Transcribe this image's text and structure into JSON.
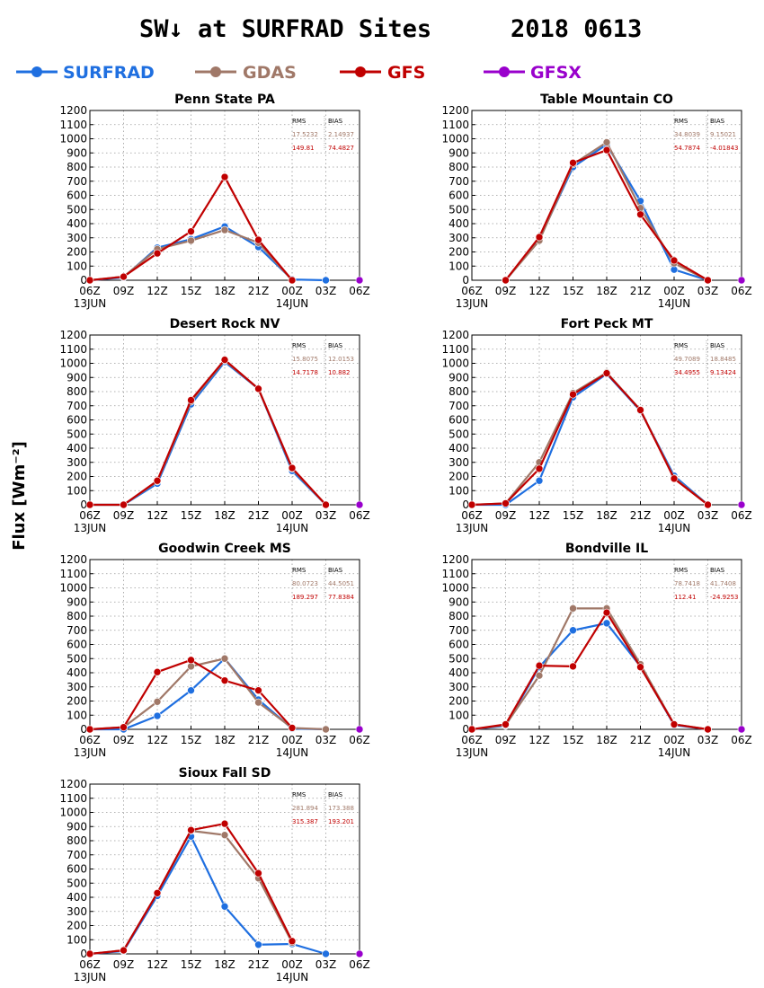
{
  "figure": {
    "title": "SW↓ at SURFRAD Sites",
    "date": "2018 0613",
    "ylabel": "Flux [Wm⁻²]"
  },
  "series_meta": [
    {
      "name": "SURFRAD",
      "color": "#1f6fe0"
    },
    {
      "name": "GDAS",
      "color": "#a07868"
    },
    {
      "name": "GFS",
      "color": "#c00000"
    },
    {
      "name": "GFSX",
      "color": "#9900cc"
    }
  ],
  "stats_headers": [
    "RMS",
    "BIAS"
  ],
  "chart_data": [
    {
      "type": "line",
      "title": "Penn State PA",
      "x": [
        "06Z",
        "09Z",
        "12Z",
        "15Z",
        "18Z",
        "21Z",
        "00Z",
        "03Z",
        "06Z"
      ],
      "x_sublabels": {
        "0": "13JUN",
        "6": "14JUN"
      },
      "ylim": [
        0,
        1200
      ],
      "yticks": [
        0,
        100,
        200,
        300,
        400,
        500,
        600,
        700,
        800,
        900,
        1000,
        1100,
        1200
      ],
      "grid": true,
      "series": [
        {
          "name": "SURFRAD",
          "values": [
            0,
            20,
            230,
            290,
            380,
            235,
            5,
            0,
            null
          ]
        },
        {
          "name": "GDAS",
          "values": [
            0,
            25,
            220,
            280,
            355,
            265,
            0,
            null,
            null
          ]
        },
        {
          "name": "GFS",
          "values": [
            0,
            25,
            190,
            345,
            730,
            285,
            0,
            null,
            null
          ]
        },
        {
          "name": "GFSX",
          "values": [
            null,
            null,
            null,
            null,
            null,
            null,
            null,
            null,
            0
          ]
        }
      ],
      "stats": [
        {
          "model": "GDAS",
          "rms": "17.5232",
          "bias": "2.14937"
        },
        {
          "model": "GFS",
          "rms": "149.81",
          "bias": "74.4827"
        }
      ]
    },
    {
      "type": "line",
      "title": "Table Mountain CO",
      "x": [
        "06Z",
        "09Z",
        "12Z",
        "15Z",
        "18Z",
        "21Z",
        "00Z",
        "03Z",
        "06Z"
      ],
      "x_sublabels": {
        "0": "13JUN",
        "6": "14JUN"
      },
      "ylim": [
        0,
        1200
      ],
      "yticks": [
        0,
        100,
        200,
        300,
        400,
        500,
        600,
        700,
        800,
        900,
        1000,
        1100,
        1200
      ],
      "grid": true,
      "series": [
        {
          "name": "SURFRAD",
          "values": [
            null,
            0,
            290,
            800,
            960,
            560,
            75,
            0,
            null
          ]
        },
        {
          "name": "GDAS",
          "values": [
            null,
            0,
            280,
            820,
            975,
            510,
            120,
            0,
            null
          ]
        },
        {
          "name": "GFS",
          "values": [
            null,
            0,
            305,
            830,
            920,
            465,
            140,
            0,
            null
          ]
        },
        {
          "name": "GFSX",
          "values": [
            null,
            null,
            null,
            null,
            null,
            null,
            null,
            null,
            0
          ]
        }
      ],
      "stats": [
        {
          "model": "GDAS",
          "rms": "34.8039",
          "bias": "9.15021"
        },
        {
          "model": "GFS",
          "rms": "54.7874",
          "bias": "-4.01843"
        }
      ]
    },
    {
      "type": "line",
      "title": "Desert Rock NV",
      "x": [
        "06Z",
        "09Z",
        "12Z",
        "15Z",
        "18Z",
        "21Z",
        "00Z",
        "03Z",
        "06Z"
      ],
      "x_sublabels": {
        "0": "13JUN",
        "6": "14JUN"
      },
      "ylim": [
        0,
        1200
      ],
      "yticks": [
        0,
        100,
        200,
        300,
        400,
        500,
        600,
        700,
        800,
        900,
        1000,
        1100,
        1200
      ],
      "grid": true,
      "series": [
        {
          "name": "SURFRAD",
          "values": [
            0,
            0,
            150,
            710,
            1010,
            820,
            240,
            0,
            null
          ]
        },
        {
          "name": "GDAS",
          "values": [
            0,
            0,
            165,
            730,
            1020,
            820,
            255,
            0,
            null
          ]
        },
        {
          "name": "GFS",
          "values": [
            0,
            0,
            170,
            740,
            1025,
            820,
            260,
            0,
            null
          ]
        },
        {
          "name": "GFSX",
          "values": [
            null,
            null,
            null,
            null,
            null,
            null,
            null,
            null,
            0
          ]
        }
      ],
      "stats": [
        {
          "model": "GDAS",
          "rms": "15.8075",
          "bias": "12.0153"
        },
        {
          "model": "GFS",
          "rms": "14.7178",
          "bias": "10.882"
        }
      ]
    },
    {
      "type": "line",
      "title": "Fort Peck MT",
      "x": [
        "06Z",
        "09Z",
        "12Z",
        "15Z",
        "18Z",
        "21Z",
        "00Z",
        "03Z",
        "06Z"
      ],
      "x_sublabels": {
        "0": "13JUN",
        "6": "14JUN"
      },
      "ylim": [
        0,
        1200
      ],
      "yticks": [
        0,
        100,
        200,
        300,
        400,
        500,
        600,
        700,
        800,
        900,
        1000,
        1100,
        1200
      ],
      "grid": true,
      "series": [
        {
          "name": "SURFRAD",
          "values": [
            0,
            0,
            170,
            760,
            925,
            665,
            205,
            0,
            null
          ]
        },
        {
          "name": "GDAS",
          "values": [
            0,
            10,
            300,
            790,
            935,
            670,
            190,
            0,
            null
          ]
        },
        {
          "name": "GFS",
          "values": [
            0,
            10,
            255,
            780,
            930,
            670,
            185,
            0,
            null
          ]
        },
        {
          "name": "GFSX",
          "values": [
            null,
            null,
            null,
            null,
            null,
            null,
            null,
            null,
            0
          ]
        }
      ],
      "stats": [
        {
          "model": "GDAS",
          "rms": "49.7089",
          "bias": "18.8485"
        },
        {
          "model": "GFS",
          "rms": "34.4955",
          "bias": "9.13424"
        }
      ]
    },
    {
      "type": "line",
      "title": "Goodwin Creek MS",
      "x": [
        "06Z",
        "09Z",
        "12Z",
        "15Z",
        "18Z",
        "21Z",
        "00Z",
        "03Z",
        "06Z"
      ],
      "x_sublabels": {
        "0": "13JUN",
        "6": "14JUN"
      },
      "ylim": [
        0,
        1200
      ],
      "yticks": [
        0,
        100,
        200,
        300,
        400,
        500,
        600,
        700,
        800,
        900,
        1000,
        1100,
        1200
      ],
      "grid": true,
      "series": [
        {
          "name": "SURFRAD",
          "values": [
            0,
            0,
            95,
            275,
            500,
            210,
            5,
            0,
            null
          ]
        },
        {
          "name": "GDAS",
          "values": [
            0,
            15,
            195,
            445,
            500,
            190,
            10,
            0,
            null
          ]
        },
        {
          "name": "GFS",
          "values": [
            0,
            15,
            405,
            490,
            345,
            275,
            10,
            null,
            null
          ]
        },
        {
          "name": "GFSX",
          "values": [
            null,
            null,
            null,
            null,
            null,
            null,
            null,
            null,
            0
          ]
        }
      ],
      "stats": [
        {
          "model": "GDAS",
          "rms": "80.0723",
          "bias": "44.5051"
        },
        {
          "model": "GFS",
          "rms": "189.297",
          "bias": "77.8384"
        }
      ]
    },
    {
      "type": "line",
      "title": "Bondville IL",
      "x": [
        "06Z",
        "09Z",
        "12Z",
        "15Z",
        "18Z",
        "21Z",
        "00Z",
        "03Z",
        "06Z"
      ],
      "x_sublabels": {
        "0": "13JUN",
        "6": "14JUN"
      },
      "ylim": [
        0,
        1200
      ],
      "yticks": [
        0,
        100,
        200,
        300,
        400,
        500,
        600,
        700,
        800,
        900,
        1000,
        1100,
        1200
      ],
      "grid": true,
      "series": [
        {
          "name": "SURFRAD",
          "values": [
            0,
            25,
            440,
            700,
            750,
            445,
            30,
            0,
            null
          ]
        },
        {
          "name": "GDAS",
          "values": [
            0,
            30,
            380,
            855,
            855,
            460,
            35,
            0,
            null
          ]
        },
        {
          "name": "GFS",
          "values": [
            0,
            35,
            450,
            445,
            825,
            440,
            35,
            0,
            null
          ]
        },
        {
          "name": "GFSX",
          "values": [
            null,
            null,
            null,
            null,
            null,
            null,
            null,
            null,
            0
          ]
        }
      ],
      "stats": [
        {
          "model": "GDAS",
          "rms": "78.7418",
          "bias": "41.7408"
        },
        {
          "model": "GFS",
          "rms": "112.41",
          "bias": "-24.9253"
        }
      ]
    },
    {
      "type": "line",
      "title": "Sioux Fall SD",
      "x": [
        "06Z",
        "09Z",
        "12Z",
        "15Z",
        "18Z",
        "21Z",
        "00Z",
        "03Z",
        "06Z"
      ],
      "x_sublabels": {
        "0": "13JUN",
        "6": "14JUN"
      },
      "ylim": [
        0,
        1200
      ],
      "yticks": [
        0,
        100,
        200,
        300,
        400,
        500,
        600,
        700,
        800,
        900,
        1000,
        1100,
        1200
      ],
      "grid": true,
      "series": [
        {
          "name": "SURFRAD",
          "values": [
            0,
            20,
            410,
            830,
            335,
            65,
            70,
            0,
            null
          ]
        },
        {
          "name": "GDAS",
          "values": [
            0,
            25,
            430,
            870,
            840,
            535,
            80,
            null,
            null
          ]
        },
        {
          "name": "GFS",
          "values": [
            0,
            25,
            430,
            875,
            920,
            570,
            90,
            null,
            null
          ]
        },
        {
          "name": "GFSX",
          "values": [
            null,
            null,
            null,
            null,
            null,
            null,
            null,
            null,
            0
          ]
        }
      ],
      "stats": [
        {
          "model": "GDAS",
          "rms": "281.894",
          "bias": "173.388"
        },
        {
          "model": "GFS",
          "rms": "315.387",
          "bias": "193.201"
        }
      ]
    }
  ]
}
